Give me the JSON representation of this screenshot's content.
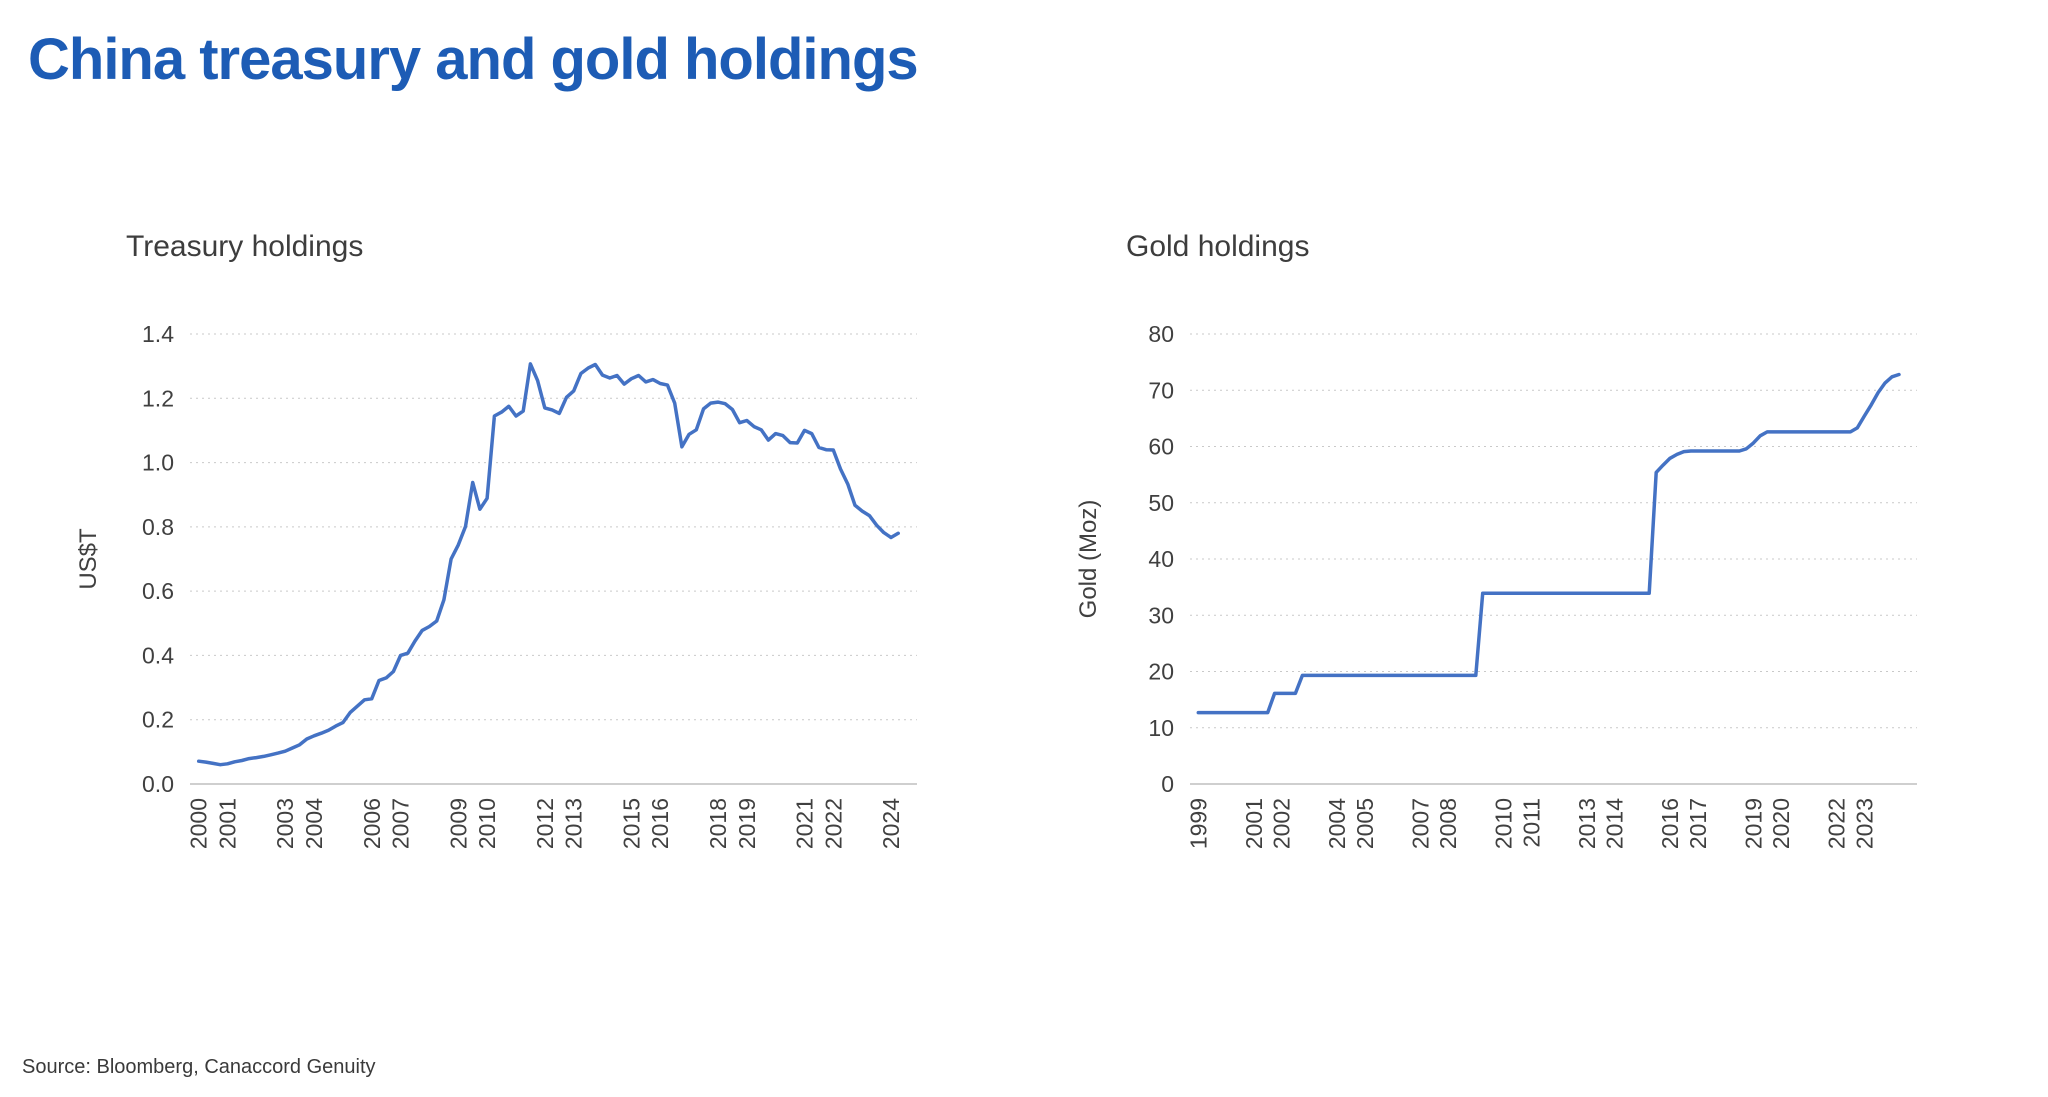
{
  "page": {
    "title": "China treasury and gold holdings",
    "source": "Source: Bloomberg, Canaccord Genuity"
  },
  "colors": {
    "title": "#1d5cb5",
    "line": "#4472C4",
    "grid": "#c9c9c9",
    "axis": "#bfbfbf",
    "text": "#404040"
  },
  "chart_data": [
    {
      "type": "line",
      "title": "Treasury holdings",
      "ylabel": "US$T",
      "ylim": [
        0,
        1.4
      ],
      "ytick_values": [
        0,
        0.2,
        0.4,
        0.6,
        0.8,
        1.0,
        1.2,
        1.4
      ],
      "ytick_labels": [
        "0.0",
        "0.2",
        "0.4",
        "0.6",
        "0.8",
        "1.0",
        "1.2",
        "1.4"
      ],
      "xlim": [
        1999.7,
        2024.9
      ],
      "xticks": [
        2000,
        2001,
        2003,
        2004,
        2006,
        2007,
        2009,
        2010,
        2012,
        2013,
        2015,
        2016,
        2018,
        2019,
        2021,
        2022,
        2024
      ],
      "x_start": 2000,
      "x_step": 0.25,
      "grid": "dotted",
      "legend": "none",
      "values": [
        0.071,
        0.068,
        0.064,
        0.06,
        0.063,
        0.069,
        0.073,
        0.079,
        0.082,
        0.086,
        0.091,
        0.096,
        0.102,
        0.112,
        0.122,
        0.14,
        0.15,
        0.158,
        0.167,
        0.18,
        0.191,
        0.222,
        0.242,
        0.262,
        0.265,
        0.322,
        0.33,
        0.35,
        0.4,
        0.407,
        0.445,
        0.478,
        0.49,
        0.507,
        0.573,
        0.7,
        0.744,
        0.801,
        0.938,
        0.855,
        0.889,
        1.145,
        1.157,
        1.175,
        1.145,
        1.16,
        1.307,
        1.255,
        1.17,
        1.164,
        1.153,
        1.203,
        1.223,
        1.277,
        1.294,
        1.305,
        1.272,
        1.263,
        1.271,
        1.244,
        1.261,
        1.271,
        1.251,
        1.258,
        1.246,
        1.241,
        1.185,
        1.049,
        1.088,
        1.102,
        1.167,
        1.185,
        1.188,
        1.183,
        1.165,
        1.124,
        1.131,
        1.112,
        1.102,
        1.07,
        1.09,
        1.084,
        1.062,
        1.061,
        1.1,
        1.09,
        1.047,
        1.04,
        1.039,
        0.98,
        0.933,
        0.867,
        0.849,
        0.835,
        0.805,
        0.782,
        0.767,
        0.78
      ]
    },
    {
      "type": "line",
      "title": "Gold holdings",
      "ylabel": "Gold (Moz)",
      "ylim": [
        0,
        80
      ],
      "ytick_values": [
        0,
        10,
        20,
        30,
        40,
        50,
        60,
        70,
        80
      ],
      "ytick_labels": [
        "0",
        "10",
        "20",
        "30",
        "40",
        "50",
        "60",
        "70",
        "80"
      ],
      "xlim": [
        1998.7,
        2024.9
      ],
      "xticks": [
        1999,
        2001,
        2002,
        2004,
        2005,
        2007,
        2008,
        2010,
        2011,
        2013,
        2014,
        2016,
        2017,
        2019,
        2020,
        2022,
        2023
      ],
      "x_start": 1999,
      "x_step": 0.25,
      "grid": "dotted",
      "legend": "none",
      "values": [
        12.7,
        12.7,
        12.7,
        12.7,
        12.7,
        12.7,
        12.7,
        12.7,
        12.7,
        12.7,
        12.7,
        16.1,
        16.1,
        16.1,
        16.1,
        19.3,
        19.3,
        19.3,
        19.3,
        19.3,
        19.3,
        19.3,
        19.3,
        19.3,
        19.3,
        19.3,
        19.3,
        19.3,
        19.3,
        19.3,
        19.3,
        19.3,
        19.3,
        19.3,
        19.3,
        19.3,
        19.3,
        19.3,
        19.3,
        19.3,
        19.3,
        33.9,
        33.9,
        33.9,
        33.9,
        33.9,
        33.9,
        33.9,
        33.9,
        33.9,
        33.9,
        33.9,
        33.9,
        33.9,
        33.9,
        33.9,
        33.9,
        33.9,
        33.9,
        33.9,
        33.9,
        33.9,
        33.9,
        33.9,
        33.9,
        33.9,
        55.4,
        56.7,
        57.9,
        58.6,
        59.1,
        59.2,
        59.2,
        59.2,
        59.2,
        59.2,
        59.2,
        59.2,
        59.2,
        59.6,
        60.6,
        61.9,
        62.6,
        62.6,
        62.6,
        62.6,
        62.6,
        62.6,
        62.6,
        62.6,
        62.6,
        62.6,
        62.6,
        62.6,
        62.6,
        63.3,
        65.4,
        67.4,
        69.6,
        71.3,
        72.4,
        72.8
      ]
    }
  ]
}
